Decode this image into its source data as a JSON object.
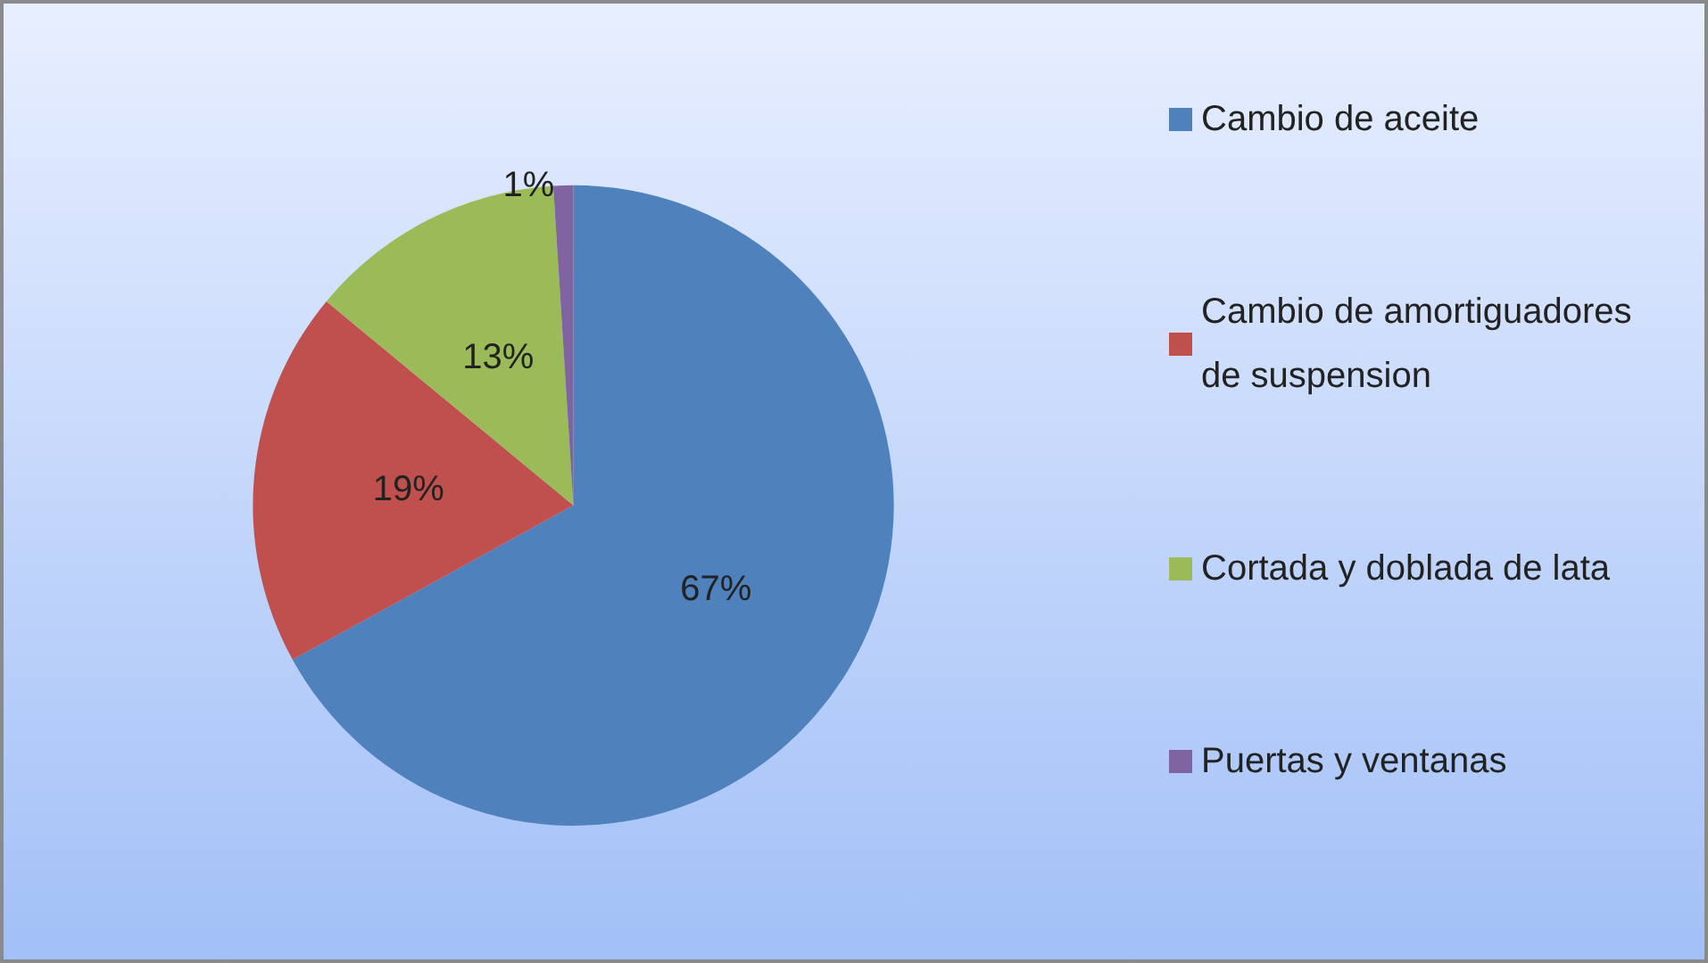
{
  "chart_data": {
    "type": "pie",
    "categories": [
      "Cambio de aceite",
      "Cambio de amortiguadores de suspension",
      "Cortada y doblada de lata",
      "Puertas y ventanas"
    ],
    "values": [
      67,
      19,
      13,
      1
    ],
    "colors": [
      "#4f81bd",
      "#c0504d",
      "#9bbb59",
      "#8064a2"
    ],
    "value_labels": [
      "67%",
      "19%",
      "13%",
      "1%"
    ],
    "legend": "right"
  }
}
